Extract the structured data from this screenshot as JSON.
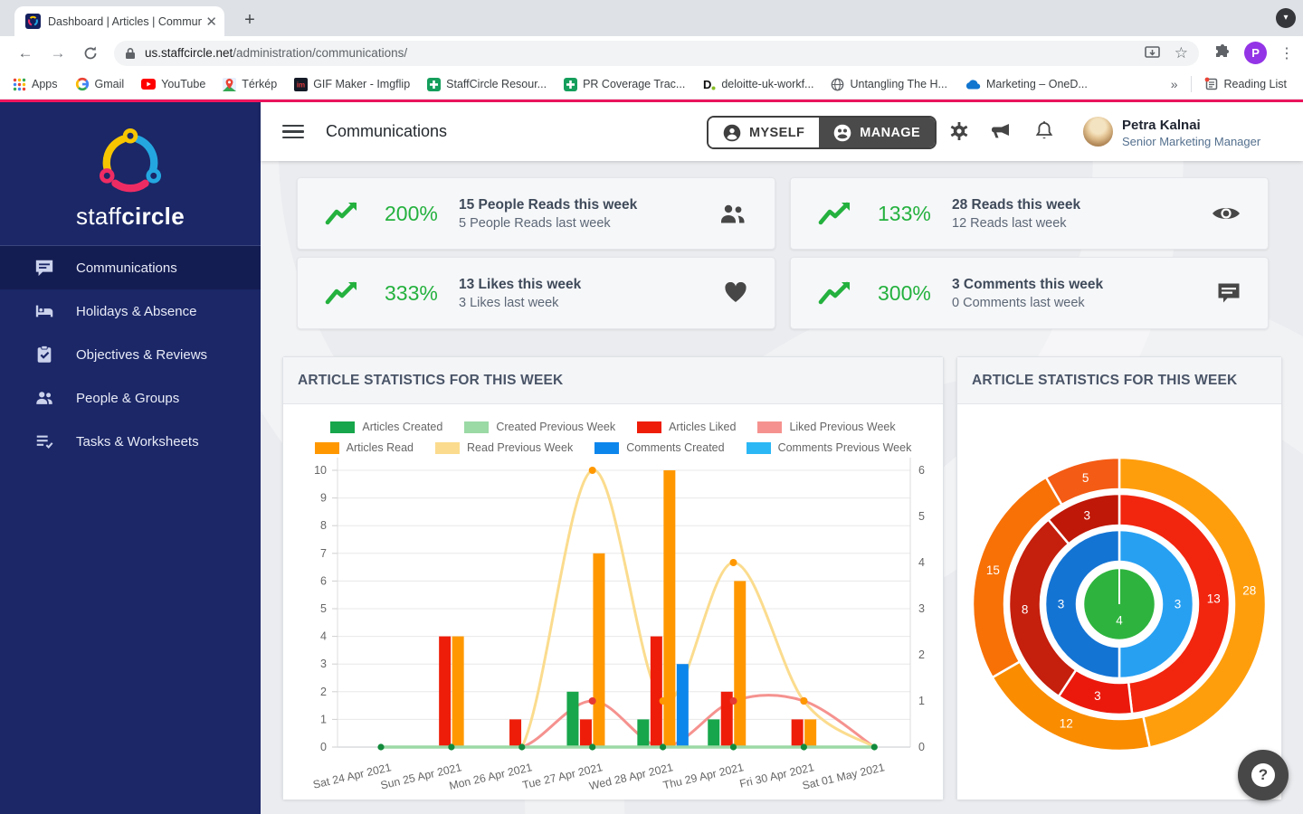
{
  "browser": {
    "tab_title": "Dashboard | Articles | Commun",
    "url_domain": "us.staffcircle.net",
    "url_path": "/administration/communications/",
    "bookmarks": {
      "apps": "Apps",
      "gmail": "Gmail",
      "youtube": "YouTube",
      "terkep": "Térkép",
      "imgflip": "GIF Maker - Imgflip",
      "staffcircle": "StaffCircle Resour...",
      "pr": "PR Coverage Trac...",
      "deloitte": "deloitte-uk-workf...",
      "untangling": "Untangling The H...",
      "onedrive": "Marketing – OneD...",
      "overflow": "»",
      "reading_list": "Reading List"
    },
    "profile_initial": "P"
  },
  "sidebar": {
    "brand_staff": "staff",
    "brand_circle": "circle",
    "items": [
      {
        "label": "Communications",
        "active": true
      },
      {
        "label": "Holidays & Absence",
        "active": false
      },
      {
        "label": "Objectives & Reviews",
        "active": false
      },
      {
        "label": "People & Groups",
        "active": false
      },
      {
        "label": "Tasks & Worksheets",
        "active": false
      }
    ]
  },
  "header": {
    "title": "Communications",
    "myself_label": "MYSELF",
    "manage_label": "MANAGE",
    "user_name": "Petra Kalnai",
    "user_role": "Senior Marketing Manager"
  },
  "stat_cards": [
    {
      "percent": "200%",
      "title": "15 People Reads this week",
      "subtitle": "5 People Reads last week",
      "icon": "people-icon"
    },
    {
      "percent": "133%",
      "title": "28 Reads this week",
      "subtitle": "12 Reads last week",
      "icon": "eye-icon"
    },
    {
      "percent": "333%",
      "title": "13 Likes this week",
      "subtitle": "3 Likes last week",
      "icon": "heart-icon"
    },
    {
      "percent": "300%",
      "title": "3 Comments this week",
      "subtitle": "0 Comments last week",
      "icon": "comment-icon"
    }
  ],
  "accent_green": "#24B13E",
  "help_label": "?",
  "chart_data": [
    {
      "type": "bar",
      "title": "ARTICLE STATISTICS FOR THIS WEEK",
      "categories": [
        "Sat 24 Apr 2021",
        "Sun 25 Apr 2021",
        "Mon 26 Apr 2021",
        "Tue 27 Apr 2021",
        "Wed 28 Apr 2021",
        "Thu 29 Apr 2021",
        "Fri 30 Apr 2021",
        "Sat 01 May 2021"
      ],
      "left_axis": {
        "min": 0,
        "max": 10,
        "step": 1
      },
      "right_axis": {
        "min": 0,
        "max": 6,
        "step": 1
      },
      "grid": true,
      "legend_position": "top",
      "series": [
        {
          "name": "Articles Created",
          "kind": "bar",
          "axis": "left",
          "color": "#17A64B",
          "values": [
            0,
            0,
            0,
            2,
            1,
            1,
            0,
            0
          ]
        },
        {
          "name": "Articles Liked",
          "kind": "bar",
          "axis": "left",
          "color": "#EE1D09",
          "values": [
            0,
            4,
            1,
            1,
            4,
            2,
            1,
            0
          ]
        },
        {
          "name": "Articles Read",
          "kind": "bar",
          "axis": "left",
          "color": "#FF9800",
          "values": [
            0,
            4,
            0,
            7,
            10,
            6,
            1,
            0
          ]
        },
        {
          "name": "Comments Created",
          "kind": "bar",
          "axis": "left",
          "color": "#0D86EC",
          "values": [
            0,
            0,
            0,
            0,
            3,
            0,
            0,
            0
          ]
        },
        {
          "name": "Created Previous Week",
          "kind": "line",
          "axis": "right",
          "color": "#9BD9A5",
          "point_color": "#128A3C",
          "show_zero_points": true,
          "values": [
            0,
            0,
            0,
            0,
            0,
            0,
            0,
            0
          ]
        },
        {
          "name": "Liked Previous Week",
          "kind": "line",
          "axis": "right",
          "color": "#F5928F",
          "point_color": "#E53935",
          "show_zero_points": false,
          "values": [
            0,
            0,
            0,
            1,
            0,
            1,
            1,
            0
          ]
        },
        {
          "name": "Read Previous Week",
          "kind": "line",
          "axis": "right",
          "color": "#FBDC8E",
          "point_color": "#FF9800",
          "show_zero_points": false,
          "values": [
            0,
            0,
            0,
            6,
            1,
            4,
            1,
            0
          ]
        },
        {
          "name": "Comments Previous Week",
          "kind": "line",
          "axis": "right",
          "color": "#2BB7F5",
          "point_color": "#2BB7F5",
          "show_zero_points": false,
          "values": [
            0,
            0,
            0,
            0,
            0,
            0,
            0,
            0
          ]
        }
      ],
      "legend_rows": [
        [
          {
            "label": "Articles Created",
            "color": "#17A64B"
          },
          {
            "label": "Created Previous Week",
            "color": "#9BD9A5"
          },
          {
            "label": "Articles Liked",
            "color": "#EE1D09"
          },
          {
            "label": "Liked Previous Week",
            "color": "#F5928F"
          }
        ],
        [
          {
            "label": "Articles Read",
            "color": "#FF9800"
          },
          {
            "label": "Read Previous Week",
            "color": "#FBDC8E"
          },
          {
            "label": "Comments Created",
            "color": "#0D86EC"
          },
          {
            "label": "Comments Previous Week",
            "color": "#2BB7F5"
          }
        ]
      ]
    },
    {
      "type": "pie",
      "style": "concentric-donut",
      "title": "ARTICLE STATISTICS FOR THIS WEEK",
      "rings": [
        {
          "name": "reads",
          "inner_radius": 127,
          "outer_radius": 162,
          "segments": [
            {
              "value": 28,
              "color": "#FF9E0D"
            },
            {
              "value": 12,
              "color": "#FA8C00"
            },
            {
              "value": 15,
              "color": "#F87106"
            },
            {
              "value": 5,
              "color": "#F45B14"
            }
          ]
        },
        {
          "name": "likes",
          "inner_radius": 87,
          "outer_radius": 122,
          "segments": [
            {
              "value": 13,
              "color": "#F2250F"
            },
            {
              "value": 3,
              "color": "#EB190C"
            },
            {
              "value": 8,
              "color": "#C51F0D"
            },
            {
              "value": 3,
              "color": "#BF1808"
            }
          ]
        },
        {
          "name": "comments",
          "inner_radius": 47,
          "outer_radius": 82,
          "segments": [
            {
              "value": 3,
              "color": "#27A0F2"
            },
            {
              "value": 3,
              "color": "#1474D4"
            }
          ]
        }
      ],
      "center": {
        "value": 4,
        "color": "#2EB43E",
        "radius": 40
      }
    }
  ]
}
